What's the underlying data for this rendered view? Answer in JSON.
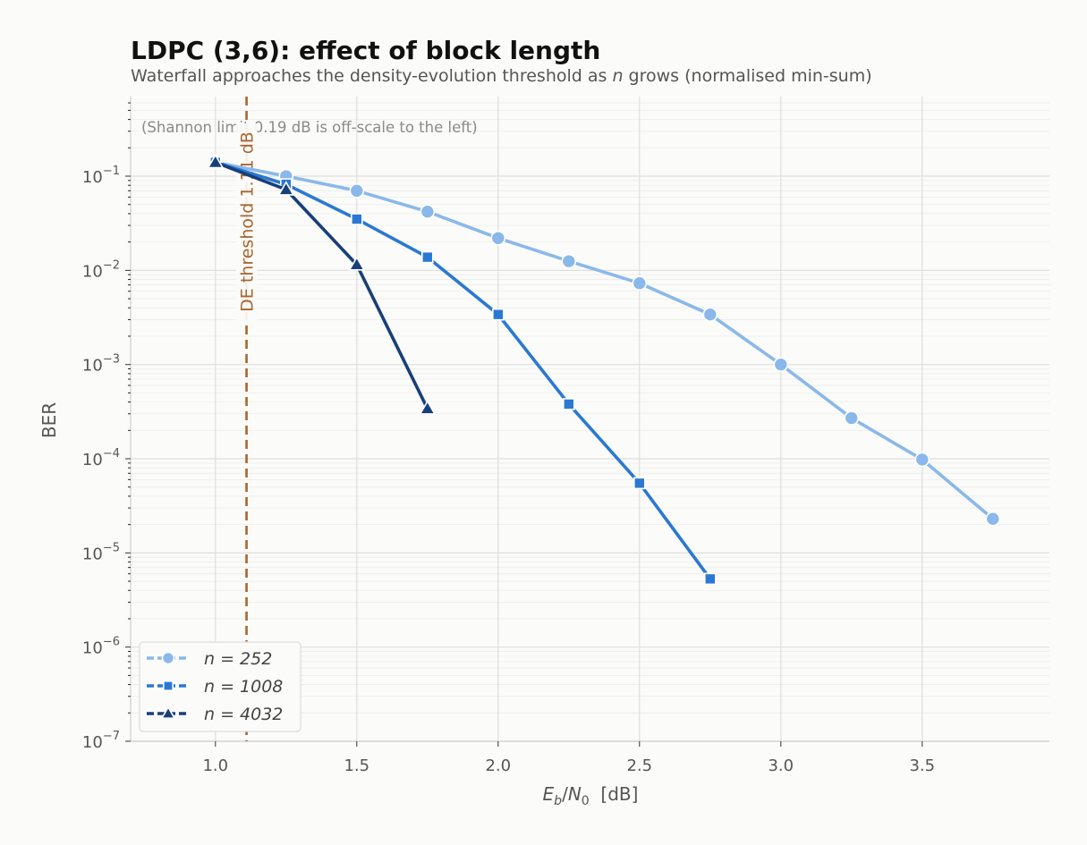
{
  "chart_data": {
    "type": "line",
    "title": "LDPC (3,6): effect of block length",
    "subtitle": "Waterfall approaches the density-evolution threshold as n grows (normalised min-sum)",
    "xlabel": "E_b/N_0  [dB]",
    "ylabel": "BER",
    "y_scale": "log",
    "xlim": [
      0.7,
      3.95
    ],
    "ylim": [
      1e-07,
      0.7
    ],
    "x_ticks": [
      1.0,
      1.5,
      2.0,
      2.5,
      3.0,
      3.5
    ],
    "x_tick_labels": [
      "1.0",
      "1.5",
      "2.0",
      "2.5",
      "3.0",
      "3.5"
    ],
    "y_ticks": [
      0.1,
      0.01,
      0.001,
      0.0001,
      1e-05,
      1e-06,
      1e-07
    ],
    "y_tick_labels": [
      {
        "base": "10",
        "exp": "−1"
      },
      {
        "base": "10",
        "exp": "−2"
      },
      {
        "base": "10",
        "exp": "−3"
      },
      {
        "base": "10",
        "exp": "−4"
      },
      {
        "base": "10",
        "exp": "−5"
      },
      {
        "base": "10",
        "exp": "−6"
      },
      {
        "base": "10",
        "exp": "−7"
      }
    ],
    "grid": true,
    "legend_position": "lower-left",
    "series": [
      {
        "name": "n = 252",
        "color": "#8ab8ea",
        "marker": "circle",
        "x": [
          1.0,
          1.25,
          1.5,
          1.75,
          2.0,
          2.25,
          2.5,
          2.75,
          3.0,
          3.25,
          3.5,
          3.75
        ],
        "y": [
          0.14,
          0.1,
          0.07,
          0.042,
          0.022,
          0.0125,
          0.0073,
          0.0034,
          0.001,
          0.00027,
          9.8e-05,
          2.3e-05
        ]
      },
      {
        "name": "n = 1008",
        "color": "#2a78d4",
        "marker": "square",
        "x": [
          1.0,
          1.25,
          1.5,
          1.75,
          2.0,
          2.25,
          2.5,
          2.75
        ],
        "y": [
          0.14,
          0.082,
          0.035,
          0.0138,
          0.0034,
          0.00038,
          5.5e-05,
          5.3e-06
        ]
      },
      {
        "name": "n = 4032",
        "color": "#173f7a",
        "marker": "triangle",
        "x": [
          1.0,
          1.25,
          1.5,
          1.75
        ],
        "y": [
          0.14,
          0.072,
          0.0115,
          0.00034
        ]
      }
    ],
    "annotations": [
      {
        "type": "vline",
        "x": 1.11,
        "color": "#a8652e",
        "text": "DE threshold 1.11 dB"
      },
      {
        "type": "note",
        "text": "(Shannon limit 0.19 dB is off-scale to the left)"
      }
    ]
  }
}
